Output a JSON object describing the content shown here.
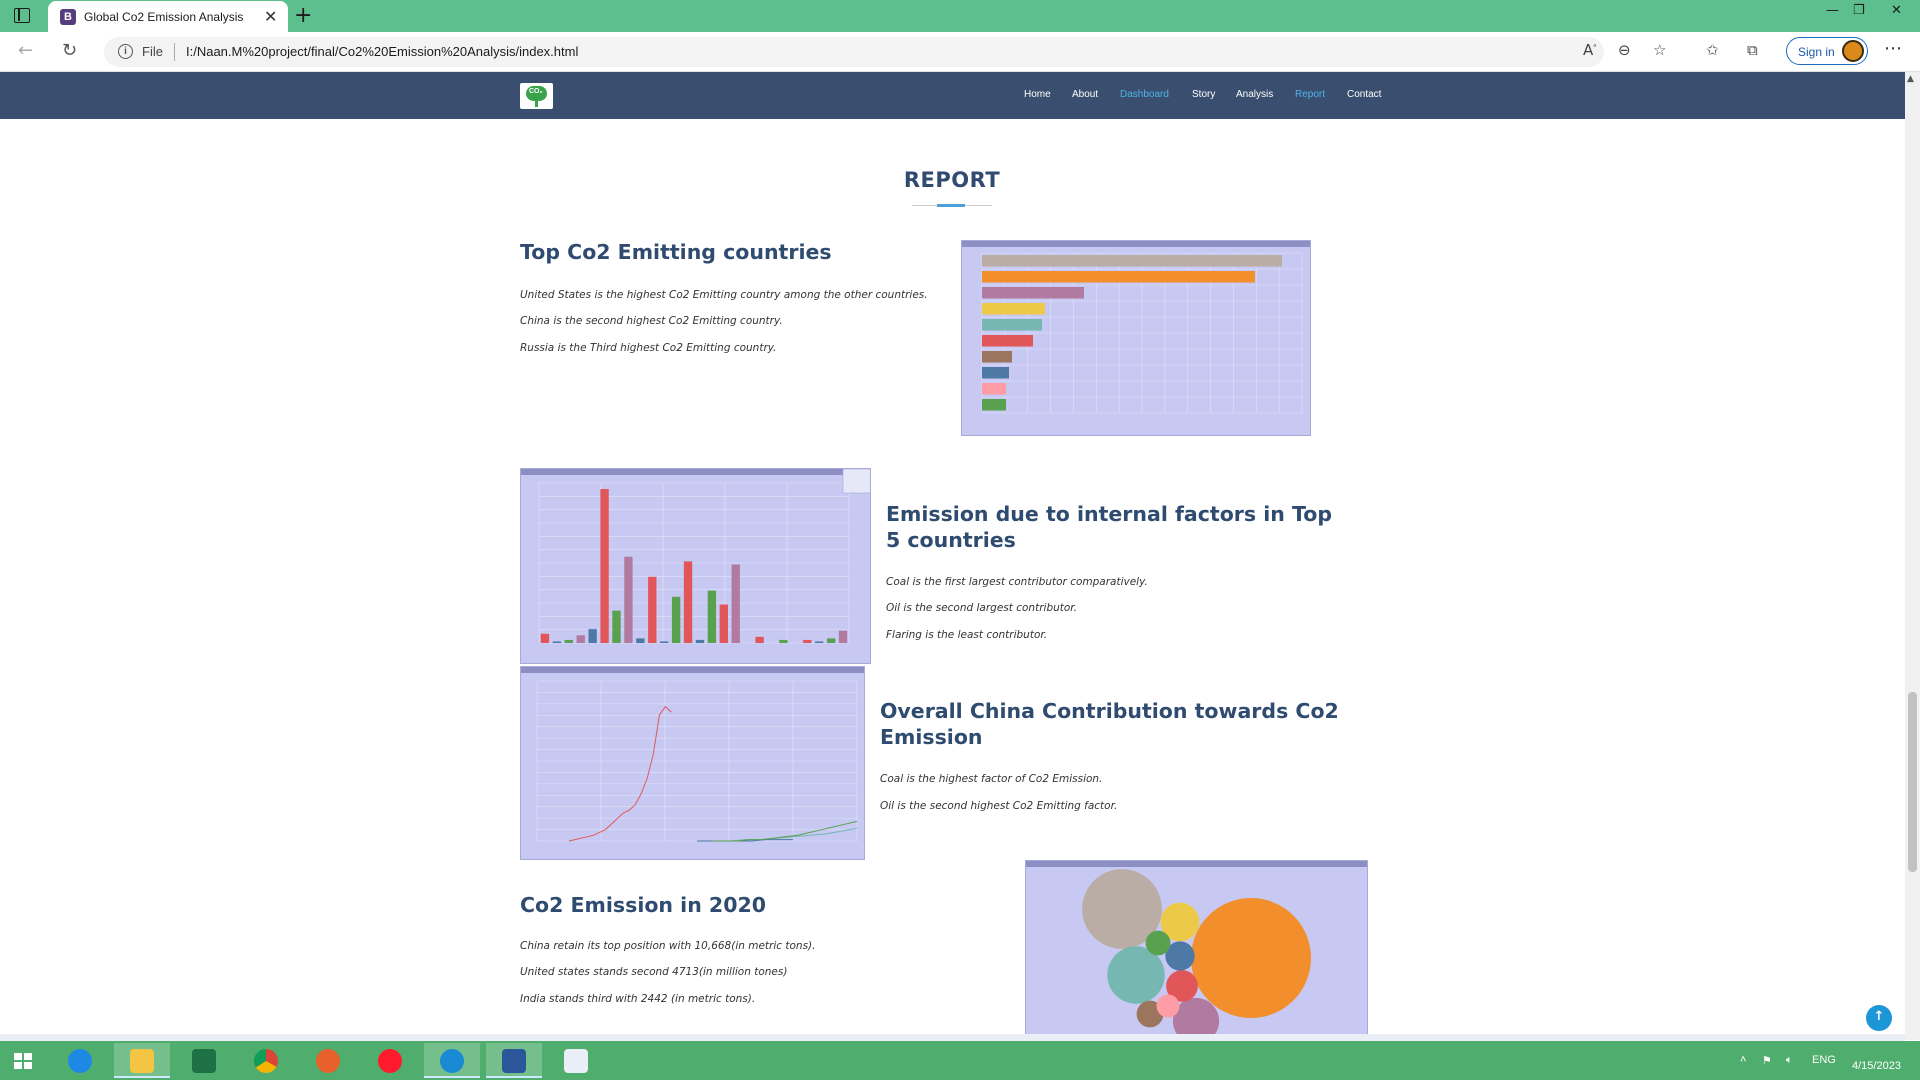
{
  "browser": {
    "tab_title": "Global Co2 Emission Analysis",
    "tab_favicon_letter": "B",
    "url_scheme": "File",
    "url": "I:/Naan.M%20project/final/Co2%20Emission%20Analysis/index.html",
    "signin_label": "Sign in"
  },
  "site": {
    "logo_text": "CO₂",
    "nav": [
      {
        "label": "Home",
        "active": false
      },
      {
        "label": "About",
        "active": false
      },
      {
        "label": "Dashboard",
        "active": true
      },
      {
        "label": "Story",
        "active": false
      },
      {
        "label": "Analysis",
        "active": false
      },
      {
        "label": "Report",
        "active": true
      },
      {
        "label": "Contact",
        "active": false
      }
    ]
  },
  "report": {
    "title": "REPORT",
    "sections": [
      {
        "heading": "Top Co2 Emitting countries",
        "lines": [
          "United States is the highest Co2 Emitting country among the other countries.",
          "China is the second highest Co2 Emitting country.",
          "Russia is the Third highest Co2 Emitting country."
        ]
      },
      {
        "heading": "Emission due to internal factors in Top 5 countries",
        "lines": [
          "Coal is the first largest contributor comparatively.",
          "Oil is the second largest contributor.",
          "Flaring is the least contributor."
        ]
      },
      {
        "heading": "Overall China Contribution towards Co2 Emission",
        "lines": [
          "Coal is the highest factor of Co2 Emission.",
          "Oil is the second highest Co2 Emitting factor."
        ]
      },
      {
        "heading": "Co2 Emission in 2020",
        "lines": [
          "China retain its top position with 10,668(in metric tons).",
          "United states stands second 4713(in million tones)",
          "India stands third with 2442 (in metric tons)."
        ]
      }
    ]
  },
  "chart_data": [
    {
      "type": "bar",
      "orientation": "horizontal",
      "values": [
        100,
        91,
        34,
        21,
        20,
        17,
        10,
        9,
        8,
        8
      ],
      "colors": [
        "#b9ada6",
        "#f28e2b",
        "#b07aa1",
        "#edc948",
        "#76b7b2",
        "#e15759",
        "#9c755f",
        "#4e79a7",
        "#ff9da7",
        "#59a14f"
      ]
    },
    {
      "type": "bar",
      "values": [
        6,
        1,
        2,
        5,
        9,
        100,
        21,
        56,
        3,
        43,
        1,
        30,
        53,
        2,
        34,
        25,
        51,
        0,
        4,
        0,
        2,
        0,
        2,
        1,
        3,
        8
      ],
      "colors": [
        "#e15759",
        "#4e79a7",
        "#59a14f",
        "#b07aa1",
        "#4e79a7",
        "#e15759",
        "#59a14f",
        "#b07aa1",
        "#4e79a7",
        "#e15759",
        "#4e79a7",
        "#59a14f",
        "#e15759",
        "#4e79a7",
        "#59a14f",
        "#e15759",
        "#b07aa1",
        "#4e79a7",
        "#e15759",
        "#4e79a7",
        "#59a14f",
        "#b07aa1",
        "#e15759",
        "#4e79a7",
        "#59a14f",
        "#b07aa1"
      ]
    },
    {
      "type": "line",
      "series": [
        {
          "color": "#e15759",
          "values": [
            0,
            1,
            2,
            3,
            4,
            6,
            8,
            12,
            16,
            20,
            22,
            26,
            34,
            45,
            62,
            90,
            96,
            92
          ]
        },
        {
          "color": "#76b7b2",
          "values": [
            0,
            0,
            1,
            1,
            2,
            3,
            4,
            5,
            7,
            9
          ]
        },
        {
          "color": "#4e79a7",
          "values": [
            0,
            0,
            0,
            0,
            0,
            1,
            1,
            1
          ]
        },
        {
          "color": "#59a14f",
          "values": [
            0,
            0,
            0,
            1,
            1,
            2,
            3,
            4,
            6,
            8,
            10,
            12,
            14
          ]
        }
      ]
    },
    {
      "type": "bubble",
      "values": [
        10668,
        4713,
        2442,
        1577,
        1107,
        746,
        637,
        531,
        457,
        392
      ],
      "colors": [
        "#f28e2b",
        "#b9ada6",
        "#76b7b2",
        "#b07aa1",
        "#edc948",
        "#e15759",
        "#4e79a7",
        "#9c755f",
        "#59a14f",
        "#ff9da7"
      ]
    }
  ],
  "taskbar": {
    "tray_lang": "ENG",
    "date": "4/15/2023"
  }
}
